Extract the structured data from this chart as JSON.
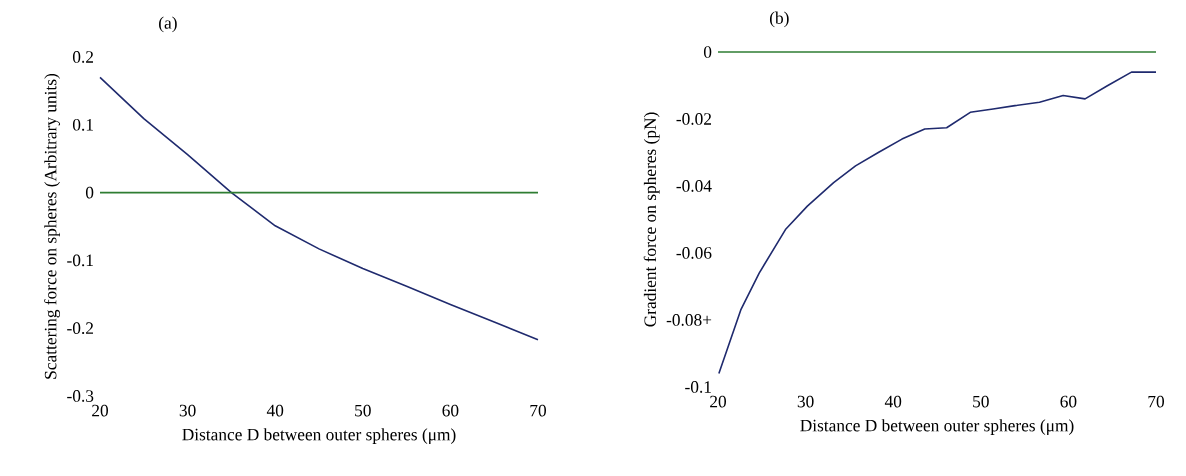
{
  "chart_data": [
    {
      "type": "line",
      "title": "(a)",
      "xlabel": "Distance D between outer spheres (μm)",
      "ylabel": "Scattering force on spheres (Arbitrary units)",
      "xlim": [
        20,
        70
      ],
      "ylim": [
        -0.3,
        0.2
      ],
      "xticks": [
        20,
        30,
        40,
        50,
        60,
        70
      ],
      "yticks": [
        -0.3,
        -0.2,
        -0.1,
        0,
        0.1,
        0.2
      ],
      "marker": "none",
      "series": [
        {
          "color": "#1f2a6e",
          "x": [
            20,
            25,
            30,
            35,
            40,
            45,
            50,
            55,
            60,
            65,
            70
          ],
          "values": [
            0.17,
            0.109,
            0.056,
            0,
            -0.049,
            -0.083,
            -0.112,
            -0.138,
            -0.165,
            -0.191,
            -0.217
          ]
        },
        {
          "color": "#2e7d32",
          "x": [
            20,
            70
          ],
          "values": [
            0,
            0
          ]
        }
      ]
    },
    {
      "type": "line",
      "title": "(b)",
      "xlabel": "Distance D between outer spheres (μm)",
      "ylabel": "Gradient force on spheres (pN)",
      "xlim": [
        20,
        70
      ],
      "ylim": [
        -0.1,
        0
      ],
      "xticks": [
        20,
        30,
        40,
        50,
        60,
        70
      ],
      "yticks": [
        -0.1,
        {
          "value": -0.08,
          "label": "-0.08+"
        },
        -0.06,
        -0.04,
        -0.02,
        0
      ],
      "marker": "none",
      "series": [
        {
          "color": "#1f2a6e",
          "x": [
            20.1,
            22.6,
            24.7,
            27.7,
            30.2,
            33.2,
            35.7,
            38.3,
            41,
            43.6,
            46.1,
            48.8,
            51.4,
            53.9,
            56.7,
            59.4,
            61.9,
            64.5,
            67.2,
            70
          ],
          "values": [
            -0.096,
            -0.077,
            -0.066,
            -0.053,
            -0.046,
            -0.039,
            -0.034,
            -0.03,
            -0.026,
            -0.023,
            -0.0226,
            -0.018,
            -0.017,
            -0.016,
            -0.015,
            -0.013,
            -0.014,
            -0.01,
            -0.006,
            -0.006
          ]
        },
        {
          "color": "#2e7d32",
          "x": [
            20,
            70
          ],
          "values": [
            0,
            0
          ]
        }
      ]
    }
  ]
}
